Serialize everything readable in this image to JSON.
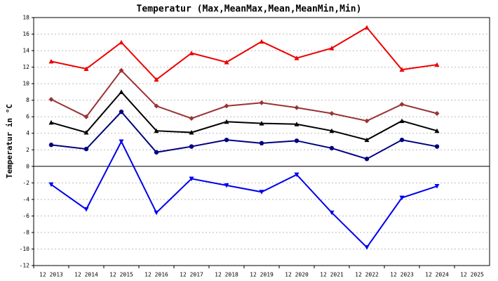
{
  "chart_data": {
    "type": "line",
    "title": "Temperatur (Max,MeanMax,Mean,MeanMin,Min)",
    "y_label": "Temperatur in °C",
    "categories": [
      "12 2013",
      "12 2014",
      "12 2015",
      "12 2016",
      "12 2017",
      "12 2018",
      "12 2019",
      "12 2020",
      "12 2021",
      "12 2022",
      "12 2023",
      "12 2024",
      "12 2025"
    ],
    "series": [
      {
        "color": "#ee0000",
        "marker": "triangle-up",
        "values": [
          12.7,
          11.8,
          15.0,
          10.5,
          13.7,
          12.6,
          15.1,
          13.1,
          14.3,
          16.8,
          11.7,
          12.3,
          null
        ]
      },
      {
        "color": "#993333",
        "marker": "diamond",
        "values": [
          8.1,
          6.0,
          11.6,
          7.3,
          5.8,
          7.3,
          7.7,
          7.1,
          6.4,
          5.5,
          7.5,
          6.4,
          null
        ]
      },
      {
        "color": "#000000",
        "marker": "triangle-up",
        "values": [
          5.3,
          4.1,
          9.0,
          4.3,
          4.1,
          5.4,
          5.2,
          5.1,
          4.3,
          3.2,
          5.5,
          4.3,
          null
        ]
      },
      {
        "color": "#000080",
        "marker": "circle",
        "values": [
          2.6,
          2.1,
          6.6,
          1.7,
          2.4,
          3.2,
          2.8,
          3.1,
          2.2,
          0.9,
          3.2,
          2.4,
          null
        ]
      },
      {
        "color": "#0000ee",
        "marker": "triangle-down",
        "values": [
          -2.2,
          -5.2,
          3.0,
          -5.6,
          -1.5,
          -2.3,
          -3.1,
          -1.0,
          -5.6,
          -9.8,
          -3.8,
          -2.4,
          null
        ]
      }
    ],
    "ylim": [
      -12,
      18
    ],
    "yticks": [
      -12,
      -10,
      -8,
      -6,
      -4,
      -2,
      0,
      2,
      4,
      6,
      8,
      10,
      12,
      14,
      16,
      18
    ],
    "grid": true
  }
}
